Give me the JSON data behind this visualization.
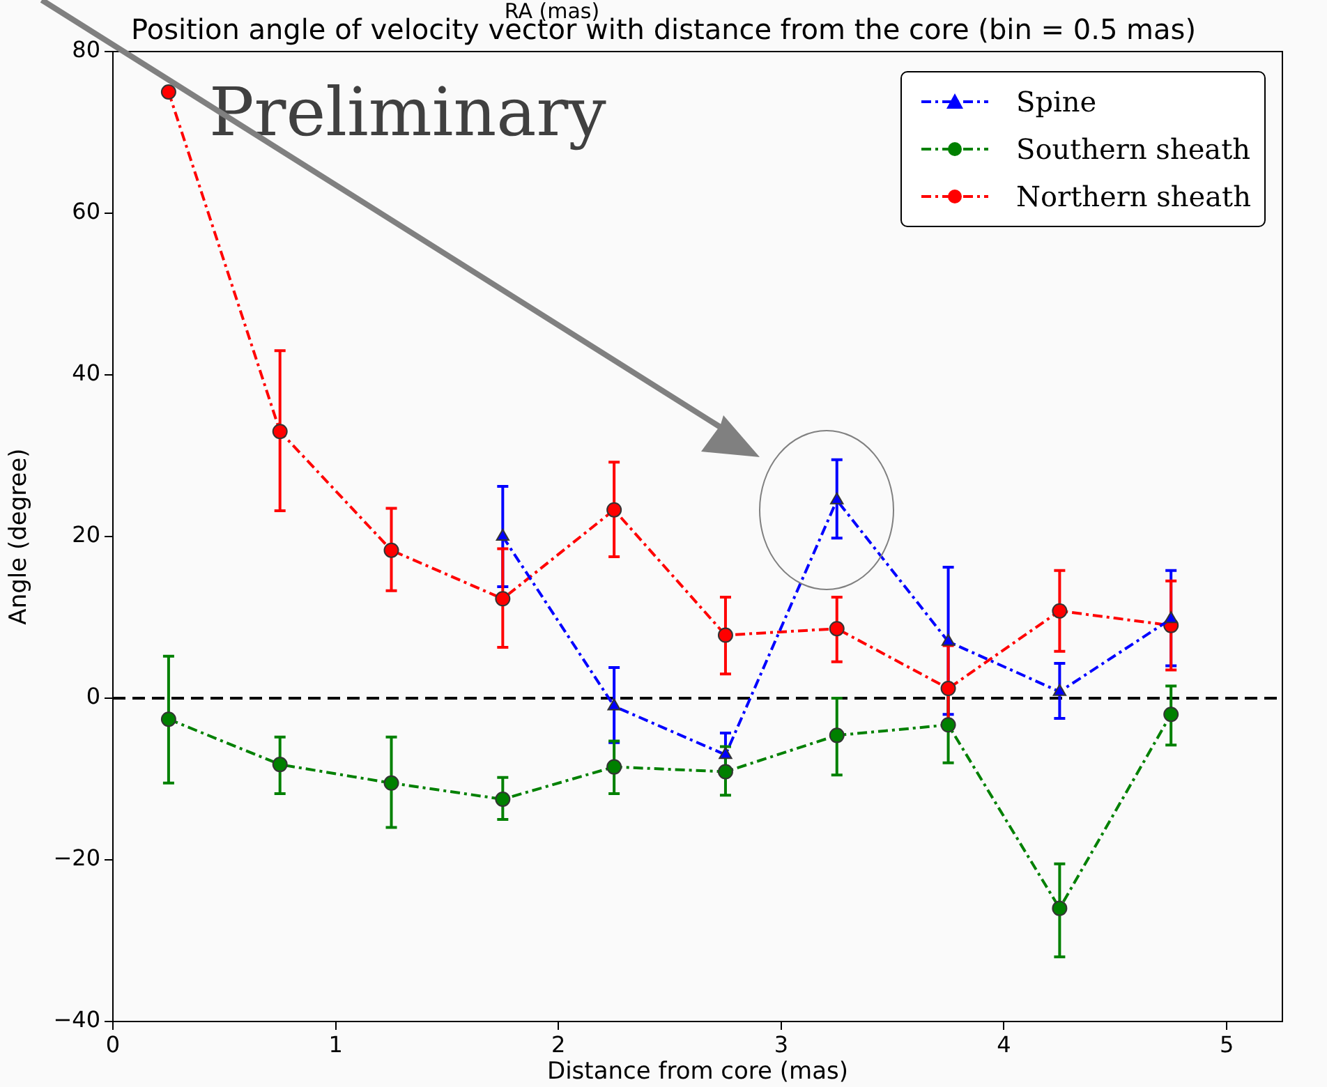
{
  "chart_data": {
    "type": "line",
    "title": "Position angle of velocity vector with distance from the core (bin = 0.5 mas)",
    "xlabel": "Distance from core (mas)",
    "ylabel": "Angle (degree)",
    "annotations": [
      "RA (mas)",
      "Preliminary"
    ],
    "x": [
      0.25,
      0.75,
      1.25,
      1.75,
      2.25,
      2.75,
      3.25,
      3.75,
      4.25,
      4.75
    ],
    "series": [
      {
        "name": "Spine",
        "color": "#0000ff",
        "marker": "triangle",
        "line_style": "dashed",
        "values": [
          null,
          null,
          null,
          20,
          -1,
          -7,
          24.5,
          7,
          0.8,
          9.8
        ],
        "errors": [
          null,
          null,
          null,
          [
            13.8,
            26.2
          ],
          [
            -5.5,
            3.8
          ],
          [
            -9.5,
            -4.3
          ],
          [
            19.8,
            29.5
          ],
          [
            -2,
            16.2
          ],
          [
            -2.5,
            4.3
          ],
          [
            4,
            15.8
          ]
        ]
      },
      {
        "name": "Southern sheath",
        "color": "#008000",
        "marker": "circle",
        "line_style": "dashed",
        "values": [
          -2.6,
          -8.2,
          -10.5,
          -12.5,
          -8.5,
          -9.1,
          -4.6,
          -3.3,
          -26,
          -2
        ],
        "errors": [
          [
            -10.5,
            5.2
          ],
          [
            -11.8,
            -4.8
          ],
          [
            -16,
            -4.8
          ],
          [
            -15,
            -9.8
          ],
          [
            -11.8,
            -5.3
          ],
          [
            -12,
            -6
          ],
          [
            -9.5,
            0
          ],
          [
            -8,
            1
          ],
          [
            -32,
            -20.5
          ],
          [
            -5.8,
            1.5
          ]
        ]
      },
      {
        "name": "Northern sheath",
        "color": "#ff0000",
        "marker": "circle",
        "line_style": "dashed",
        "values": [
          75,
          33,
          18.3,
          12.3,
          23.3,
          7.8,
          8.6,
          1.2,
          10.8,
          9
        ],
        "errors": [
          null,
          [
            23.2,
            43
          ],
          [
            13.3,
            23.5
          ],
          [
            6.3,
            18.5
          ],
          [
            17.5,
            29.2
          ],
          [
            3,
            12.5
          ],
          [
            4.5,
            12.5
          ],
          [
            -3.8,
            6.5
          ],
          [
            5.8,
            15.8
          ],
          [
            3.5,
            14.5
          ]
        ]
      }
    ],
    "xlim": [
      0,
      5.25
    ],
    "xticks": [
      0,
      1,
      2,
      3,
      4,
      5
    ],
    "ylim": [
      -40,
      80
    ],
    "yticks": [
      {
        "value": -40,
        "label": "−40"
      },
      {
        "value": -20,
        "label": "−20"
      },
      0,
      20,
      40,
      60,
      80
    ],
    "ref_lines": [
      {
        "axis": "y",
        "value": 0,
        "color": "#000000",
        "line_style": "dashed"
      }
    ],
    "grid": false,
    "legend": "top right"
  }
}
